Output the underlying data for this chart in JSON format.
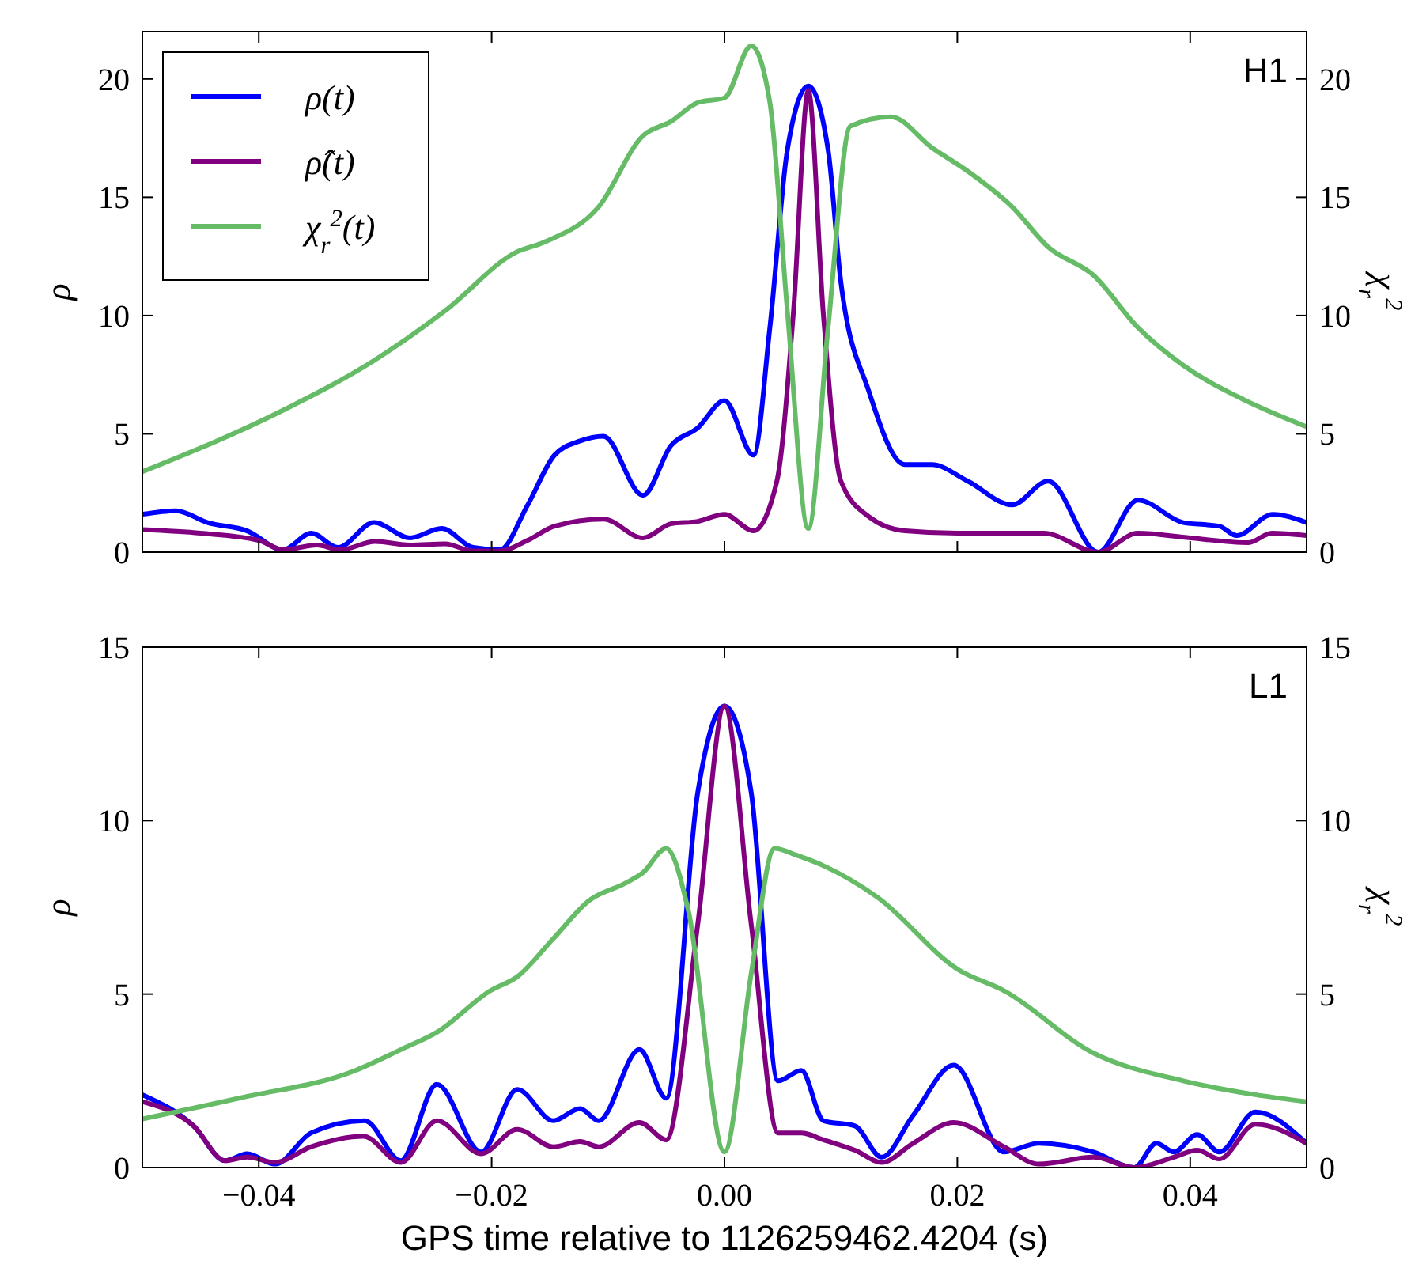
{
  "chart_data": [
    {
      "type": "line",
      "ylabel": "ρ",
      "y2label": "χ$_{r}$$^{2}$",
      "annotations": [
        "H1"
      ],
      "legend": "top left",
      "tick_labels": "y",
      "xlim": [
        -0.05,
        0.05
      ],
      "xticks": [
        {
          "value": -0.04,
          "label": null
        },
        {
          "value": -0.02,
          "label": null
        },
        {
          "value": 0,
          "label": null
        },
        {
          "value": 0.02,
          "label": null
        },
        {
          "value": 0.04,
          "label": null
        }
      ],
      "ylim": [
        0,
        22
      ],
      "yticks": [
        0,
        5,
        10,
        15,
        20
      ],
      "y2lim": [
        0,
        22
      ],
      "y2ticks": [
        0,
        5,
        10,
        15,
        20
      ],
      "series": [
        {
          "name": "ρ(t)",
          "color": "#0000ff",
          "x": [
            -0.05,
            -0.0471,
            -0.0444,
            -0.041,
            -0.0379,
            -0.0355,
            -0.0332,
            -0.0301,
            -0.027,
            -0.0243,
            -0.0216,
            -0.0193,
            -0.0169,
            -0.0146,
            -0.0124,
            -0.0104,
            -0.007,
            -0.0046,
            -0.0023,
            0,
            0.0025,
            0.0039,
            0.0054,
            0.0072,
            0.0089,
            0.01,
            0.0124,
            0.0155,
            0.0178,
            0.0209,
            0.0247,
            0.0278,
            0.0321,
            0.0355,
            0.0394,
            0.0425,
            0.044,
            0.0471,
            0.05
          ],
          "values": [
            1.6,
            1.75,
            1.25,
            0.9,
            0.1,
            0.8,
            0.2,
            1.25,
            0.6,
            1.0,
            0.2,
            0.1,
            2.0,
            4.1,
            4.7,
            4.9,
            2.4,
            4.5,
            5.25,
            6.4,
            4.1,
            9.5,
            17,
            19.7,
            17,
            11.4,
            6.8,
            3.7,
            3.7,
            3.0,
            2.0,
            3.0,
            0,
            2.2,
            1.25,
            1.1,
            0.7,
            1.6,
            1.25
          ]
        },
        {
          "name": "ρ̂(t)",
          "color": "#800080",
          "x": [
            -0.05,
            -0.045,
            -0.04,
            -0.0379,
            -0.035,
            -0.033,
            -0.03,
            -0.027,
            -0.024,
            -0.0216,
            -0.0193,
            -0.0169,
            -0.0146,
            -0.0104,
            -0.007,
            -0.0046,
            -0.0023,
            0,
            0.0025,
            0.0045,
            0.0059,
            0.0072,
            0.0085,
            0.01,
            0.0124,
            0.0155,
            0.02,
            0.025,
            0.0274,
            0.0321,
            0.0355,
            0.04,
            0.045,
            0.047,
            0.05
          ],
          "values": [
            0.95,
            0.8,
            0.5,
            0.1,
            0.3,
            0.1,
            0.45,
            0.3,
            0.35,
            0.05,
            0.05,
            0.5,
            1.1,
            1.4,
            0.6,
            1.2,
            1.3,
            1.6,
            0.9,
            3,
            10,
            19.5,
            10,
            3,
            1.5,
            0.9,
            0.8,
            0.8,
            0.8,
            0,
            0.8,
            0.6,
            0.4,
            0.8,
            0.7
          ]
        },
        {
          "name": "χ$_{r}$$^{2}$(t)",
          "color": "#66bb66",
          "x": [
            -0.05,
            -0.0379,
            -0.0301,
            -0.024,
            -0.0178,
            -0.0155,
            -0.0108,
            -0.007,
            -0.0046,
            -0.0023,
            0,
            0.0023,
            0.0039,
            0.0054,
            0.0072,
            0.0089,
            0.0108,
            0.0143,
            0.0178,
            0.0209,
            0.0247,
            0.0278,
            0.0317,
            0.0355,
            0.0394,
            0.0448,
            0.05
          ],
          "values": [
            3.4,
            6.0,
            8.1,
            10.2,
            12.7,
            13.1,
            14.6,
            17.6,
            18.2,
            19.0,
            19.2,
            21.4,
            19,
            10.2,
            1.0,
            9.5,
            18,
            18.4,
            17.1,
            16.1,
            14.6,
            12.9,
            11.7,
            9.5,
            7.9,
            6.4,
            5.3
          ]
        }
      ]
    },
    {
      "type": "line",
      "ylabel": "ρ",
      "y2label": "χ$_{r}$$^{2}$",
      "xlabel": "GPS time relative to 1126259462.4204 (s)",
      "annotations": [
        "L1"
      ],
      "xlim": [
        -0.05,
        0.05
      ],
      "xticks": [
        {
          "value": -0.04,
          "label": "−0.04"
        },
        {
          "value": -0.02,
          "label": "−0.02"
        },
        {
          "value": 0,
          "label": "0.00"
        },
        {
          "value": 0.02,
          "label": "0.02"
        },
        {
          "value": 0.04,
          "label": "0.04"
        }
      ],
      "ylim": [
        0,
        15
      ],
      "yticks": [
        0,
        5,
        10,
        15
      ],
      "y2lim": [
        0,
        15
      ],
      "y2ticks": [
        0,
        5,
        10,
        15
      ],
      "series": [
        {
          "color": "#0000ff",
          "x": [
            -0.05,
            -0.0456,
            -0.0429,
            -0.041,
            -0.0386,
            -0.0355,
            -0.0309,
            -0.0278,
            -0.0247,
            -0.0209,
            -0.0178,
            -0.0147,
            -0.0124,
            -0.0108,
            -0.0073,
            -0.005,
            -0.0023,
            0,
            0.0023,
            0.0046,
            0.0066,
            0.0085,
            0.0112,
            0.0135,
            0.0162,
            0.0197,
            0.024,
            0.027,
            0.0317,
            0.0352,
            0.0371,
            0.0386,
            0.0406,
            0.0425,
            0.0456,
            0.05
          ],
          "values": [
            2.1,
            1.2,
            0.2,
            0.4,
            0.1,
            1.0,
            1.35,
            0.2,
            2.4,
            0.45,
            2.25,
            1.35,
            1.7,
            1.35,
            3.4,
            2.0,
            10.8,
            13.3,
            10.8,
            2.5,
            2.8,
            1.35,
            1.2,
            0.3,
            1.5,
            2.95,
            0.45,
            0.7,
            0.45,
            0,
            0.7,
            0.45,
            0.95,
            0.45,
            1.6,
            0.7
          ]
        },
        {
          "color": "#800080",
          "x": [
            -0.05,
            -0.0456,
            -0.0429,
            -0.041,
            -0.0386,
            -0.0355,
            -0.031,
            -0.0278,
            -0.0247,
            -0.0209,
            -0.0178,
            -0.0147,
            -0.0124,
            -0.0108,
            -0.0073,
            -0.005,
            -0.0023,
            0,
            0.0023,
            0.0046,
            0.0066,
            0.0085,
            0.0112,
            0.0135,
            0.0162,
            0.0197,
            0.024,
            0.027,
            0.0317,
            0.0352,
            0.0386,
            0.0406,
            0.0425,
            0.0456,
            0.05
          ],
          "values": [
            1.9,
            1.2,
            0.2,
            0.3,
            0.15,
            0.6,
            0.9,
            0.15,
            1.35,
            0.4,
            1.1,
            0.6,
            0.75,
            0.6,
            1.3,
            0.8,
            7,
            13.3,
            7,
            1.0,
            1.0,
            0.8,
            0.5,
            0.15,
            0.7,
            1.3,
            0.6,
            0.1,
            0.3,
            0,
            0.3,
            0.5,
            0.25,
            1.25,
            0.7
          ]
        },
        {
          "color": "#66bb66",
          "x": [
            -0.05,
            -0.0417,
            -0.0317,
            -0.0278,
            -0.0247,
            -0.0201,
            -0.0178,
            -0.0147,
            -0.0116,
            -0.0085,
            -0.007,
            -0.005,
            -0.0031,
            0,
            0.0023,
            0.0043,
            0.0062,
            0.0085,
            0.0131,
            0.0201,
            0.024,
            0.0317,
            0.0394,
            0.0456,
            0.05
          ],
          "values": [
            1.4,
            2.0,
            2.8,
            3.4,
            3.9,
            5.1,
            5.5,
            6.6,
            7.7,
            8.2,
            8.5,
            9.2,
            7.4,
            0.45,
            5.6,
            9.2,
            9.0,
            8.7,
            7.8,
            5.7,
            5.1,
            3.3,
            2.5,
            2.1,
            1.9
          ]
        }
      ]
    }
  ]
}
